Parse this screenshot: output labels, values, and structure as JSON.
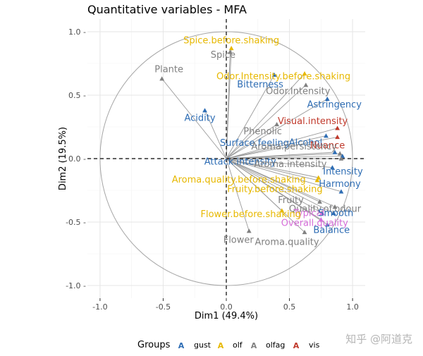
{
  "chart_data": {
    "type": "scatter",
    "title": "Quantitative variables - MFA",
    "xlabel": "Dim1 (49.4%)",
    "ylabel": "Dim2 (19.5%)",
    "xlim": [
      -1.1,
      1.1
    ],
    "ylim": [
      -1.1,
      1.1
    ],
    "xticks": [
      -1.0,
      -0.5,
      0.0,
      0.5,
      1.0
    ],
    "xtick_labels": [
      "-1.0",
      "-0.5",
      "0.0",
      "0.5",
      "1.0"
    ],
    "yticks": [
      1.0,
      0.5,
      0.0,
      -0.5,
      -1.0
    ],
    "ytick_labels": [
      "1.0 -",
      "0.5 -",
      "0.0 -",
      "-0.5 -",
      "-1.0 -"
    ],
    "grid": true,
    "unit_circle": true,
    "legend": {
      "title": "Groups",
      "position": "bottom",
      "entries": [
        {
          "key": "gust",
          "label": "gust",
          "color": "#2e6db4"
        },
        {
          "key": "olf",
          "label": "olf",
          "color": "#e7b800"
        },
        {
          "key": "olfag",
          "label": "olfag",
          "color": "#808080"
        },
        {
          "key": "vis",
          "label": "vis",
          "color": "#c0392b"
        }
      ]
    },
    "group_colors": {
      "gust": "#2e6db4",
      "olf": "#e7b800",
      "olfag": "#808080",
      "vis": "#c0392b",
      "overall": "#d66ed9"
    },
    "points": [
      {
        "label": "Spice.before.shaking",
        "group": "olf",
        "x": 0.04,
        "y": 0.87
      },
      {
        "label": "Spice",
        "group": "olfag",
        "x": 0.03,
        "y": 0.84
      },
      {
        "label": "Odor.Intensity.before.shaking",
        "group": "olf",
        "x": 0.62,
        "y": 0.67
      },
      {
        "label": "Plante",
        "group": "olfag",
        "x": -0.51,
        "y": 0.63
      },
      {
        "label": "Bitterness",
        "group": "gust",
        "x": 0.38,
        "y": 0.66
      },
      {
        "label": "Odor.Intensity",
        "group": "olfag",
        "x": 0.63,
        "y": 0.58
      },
      {
        "label": "Astringency",
        "group": "gust",
        "x": 0.8,
        "y": 0.47
      },
      {
        "label": "Acidity",
        "group": "gust",
        "x": -0.17,
        "y": 0.38
      },
      {
        "label": "Visual.intensity",
        "group": "vis",
        "x": 0.88,
        "y": 0.24
      },
      {
        "label": "Phenolic",
        "group": "olfag",
        "x": 0.4,
        "y": 0.27
      },
      {
        "label": "Alcohol",
        "group": "gust",
        "x": 0.79,
        "y": 0.18
      },
      {
        "label": "Nuance",
        "group": "vis",
        "x": 0.88,
        "y": 0.17
      },
      {
        "label": "Surface.feeling",
        "group": "gust",
        "x": 0.86,
        "y": 0.05
      },
      {
        "label": "Aroma.persistency",
        "group": "olfag",
        "x": 0.9,
        "y": 0.04
      },
      {
        "label": "Attack.intensity",
        "group": "gust",
        "x": 0.92,
        "y": 0.02
      },
      {
        "label": "Aroma.intensity",
        "group": "olfag",
        "x": 0.91,
        "y": 0.0
      },
      {
        "label": "Aroma.quality.before.shaking",
        "group": "olf",
        "x": 0.73,
        "y": -0.15
      },
      {
        "label": "Intensity",
        "group": "gust",
        "x": 0.84,
        "y": -0.07
      },
      {
        "label": "Harmony",
        "group": "gust",
        "x": 0.91,
        "y": -0.26
      },
      {
        "label": "Fruity.before.shaking",
        "group": "olf",
        "x": 0.72,
        "y": -0.17
      },
      {
        "label": "Fruity",
        "group": "olfag",
        "x": 0.74,
        "y": -0.34
      },
      {
        "label": "Quality.of.odour",
        "group": "olfag",
        "x": 0.86,
        "y": -0.38
      },
      {
        "label": "Typical",
        "group": "overall",
        "x": 0.76,
        "y": -0.43
      },
      {
        "label": "Flower.before.shaking",
        "group": "olf",
        "x": 0.44,
        "y": -0.41
      },
      {
        "label": "Smooth",
        "group": "gust",
        "x": 0.85,
        "y": -0.43
      },
      {
        "label": "Overall.quality",
        "group": "overall",
        "x": 0.75,
        "y": -0.48
      },
      {
        "label": "Balance",
        "group": "gust",
        "x": 0.8,
        "y": -0.52
      },
      {
        "label": "Flower",
        "group": "olfag",
        "x": 0.18,
        "y": -0.57
      },
      {
        "label": "Aroma.quality",
        "group": "olfag",
        "x": 0.62,
        "y": -0.58
      }
    ]
  },
  "watermark": "知乎 @阿道克"
}
